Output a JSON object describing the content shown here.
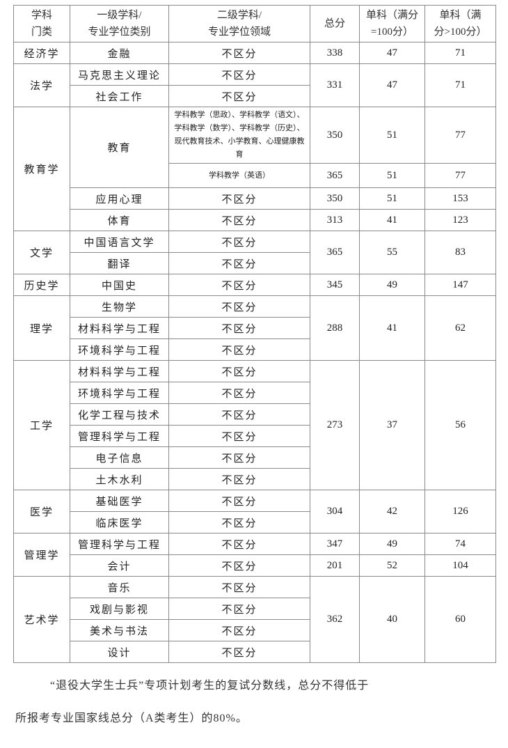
{
  "header": [
    "学科\n门类",
    "一级学科/\n专业学位类别",
    "二级学科/\n专业学位领域",
    "总分",
    "单科（满分\n=100分）",
    "单科（满\n分>100分）"
  ],
  "rows": [
    [
      {
        "t": "经济学"
      },
      {
        "t": "金融"
      },
      {
        "t": "不区分"
      },
      {
        "t": "338",
        "n": 1
      },
      {
        "t": "47",
        "n": 1
      },
      {
        "t": "71",
        "n": 1
      }
    ],
    [
      {
        "t": "法学",
        "rs": 2
      },
      {
        "t": "马克思主义理论"
      },
      {
        "t": "不区分"
      },
      {
        "t": "331",
        "rs": 2,
        "n": 1
      },
      {
        "t": "47",
        "rs": 2,
        "n": 1
      },
      {
        "t": "71",
        "rs": 2,
        "n": 1
      }
    ],
    [
      {
        "t": "社会工作"
      },
      {
        "t": "不区分"
      }
    ],
    [
      {
        "t": "教育学",
        "rs": 4
      },
      {
        "t": "教育",
        "rs": 2
      },
      {
        "t": "学科教学（思政）、学科教学（语文）、学科教学（数学）、学科教学（历史）、现代教育技术、小学教育、心理健康教育",
        "small": 1
      },
      {
        "t": "350",
        "n": 1
      },
      {
        "t": "51",
        "n": 1
      },
      {
        "t": "77",
        "n": 1
      }
    ],
    [
      {
        "t": "学科教学（英语）",
        "small": 1
      },
      {
        "t": "365",
        "n": 1
      },
      {
        "t": "51",
        "n": 1
      },
      {
        "t": "77",
        "n": 1
      }
    ],
    [
      {
        "t": "应用心理"
      },
      {
        "t": "不区分"
      },
      {
        "t": "350",
        "n": 1
      },
      {
        "t": "51",
        "n": 1
      },
      {
        "t": "153",
        "n": 1
      }
    ],
    [
      {
        "t": "体育"
      },
      {
        "t": "不区分"
      },
      {
        "t": "313",
        "n": 1
      },
      {
        "t": "41",
        "n": 1
      },
      {
        "t": "123",
        "n": 1
      }
    ],
    [
      {
        "t": "文学",
        "rs": 2
      },
      {
        "t": "中国语言文学"
      },
      {
        "t": "不区分"
      },
      {
        "t": "365",
        "rs": 2,
        "n": 1
      },
      {
        "t": "55",
        "rs": 2,
        "n": 1
      },
      {
        "t": "83",
        "rs": 2,
        "n": 1
      }
    ],
    [
      {
        "t": "翻译"
      },
      {
        "t": "不区分"
      }
    ],
    [
      {
        "t": "历史学"
      },
      {
        "t": "中国史"
      },
      {
        "t": "不区分"
      },
      {
        "t": "345",
        "n": 1
      },
      {
        "t": "49",
        "n": 1
      },
      {
        "t": "147",
        "n": 1
      }
    ],
    [
      {
        "t": "理学",
        "rs": 3
      },
      {
        "t": "生物学"
      },
      {
        "t": "不区分"
      },
      {
        "t": "288",
        "rs": 3,
        "n": 1
      },
      {
        "t": "41",
        "rs": 3,
        "n": 1
      },
      {
        "t": "62",
        "rs": 3,
        "n": 1
      }
    ],
    [
      {
        "t": "材料科学与工程"
      },
      {
        "t": "不区分"
      }
    ],
    [
      {
        "t": "环境科学与工程"
      },
      {
        "t": "不区分"
      }
    ],
    [
      {
        "t": "工学",
        "rs": 6
      },
      {
        "t": "材料科学与工程"
      },
      {
        "t": "不区分"
      },
      {
        "t": "273",
        "rs": 6,
        "n": 1
      },
      {
        "t": "37",
        "rs": 6,
        "n": 1
      },
      {
        "t": "56",
        "rs": 6,
        "n": 1
      }
    ],
    [
      {
        "t": "环境科学与工程"
      },
      {
        "t": "不区分"
      }
    ],
    [
      {
        "t": "化学工程与技术"
      },
      {
        "t": "不区分"
      }
    ],
    [
      {
        "t": "管理科学与工程"
      },
      {
        "t": "不区分"
      }
    ],
    [
      {
        "t": "电子信息"
      },
      {
        "t": "不区分"
      }
    ],
    [
      {
        "t": "土木水利"
      },
      {
        "t": "不区分"
      }
    ],
    [
      {
        "t": "医学",
        "rs": 2
      },
      {
        "t": "基础医学"
      },
      {
        "t": "不区分"
      },
      {
        "t": "304",
        "rs": 2,
        "n": 1
      },
      {
        "t": "42",
        "rs": 2,
        "n": 1
      },
      {
        "t": "126",
        "rs": 2,
        "n": 1
      }
    ],
    [
      {
        "t": "临床医学"
      },
      {
        "t": "不区分"
      }
    ],
    [
      {
        "t": "管理学",
        "rs": 2
      },
      {
        "t": "管理科学与工程"
      },
      {
        "t": "不区分"
      },
      {
        "t": "347",
        "n": 1
      },
      {
        "t": "49",
        "n": 1
      },
      {
        "t": "74",
        "n": 1
      }
    ],
    [
      {
        "t": "会计"
      },
      {
        "t": "不区分"
      },
      {
        "t": "201",
        "n": 1
      },
      {
        "t": "52",
        "n": 1
      },
      {
        "t": "104",
        "n": 1
      }
    ],
    [
      {
        "t": "艺术学",
        "rs": 4
      },
      {
        "t": "音乐"
      },
      {
        "t": "不区分"
      },
      {
        "t": "362",
        "rs": 4,
        "n": 1
      },
      {
        "t": "40",
        "rs": 4,
        "n": 1
      },
      {
        "t": "60",
        "rs": 4,
        "n": 1
      }
    ],
    [
      {
        "t": "戏剧与影视"
      },
      {
        "t": "不区分"
      }
    ],
    [
      {
        "t": "美术与书法"
      },
      {
        "t": "不区分"
      }
    ],
    [
      {
        "t": "设计"
      },
      {
        "t": "不区分"
      }
    ]
  ],
  "note": {
    "line1": "“退役大学生士兵”专项计划考生的复试分数线，总分不得低于",
    "line2": "所报考专业国家线总分（A类考生）的80%。"
  }
}
